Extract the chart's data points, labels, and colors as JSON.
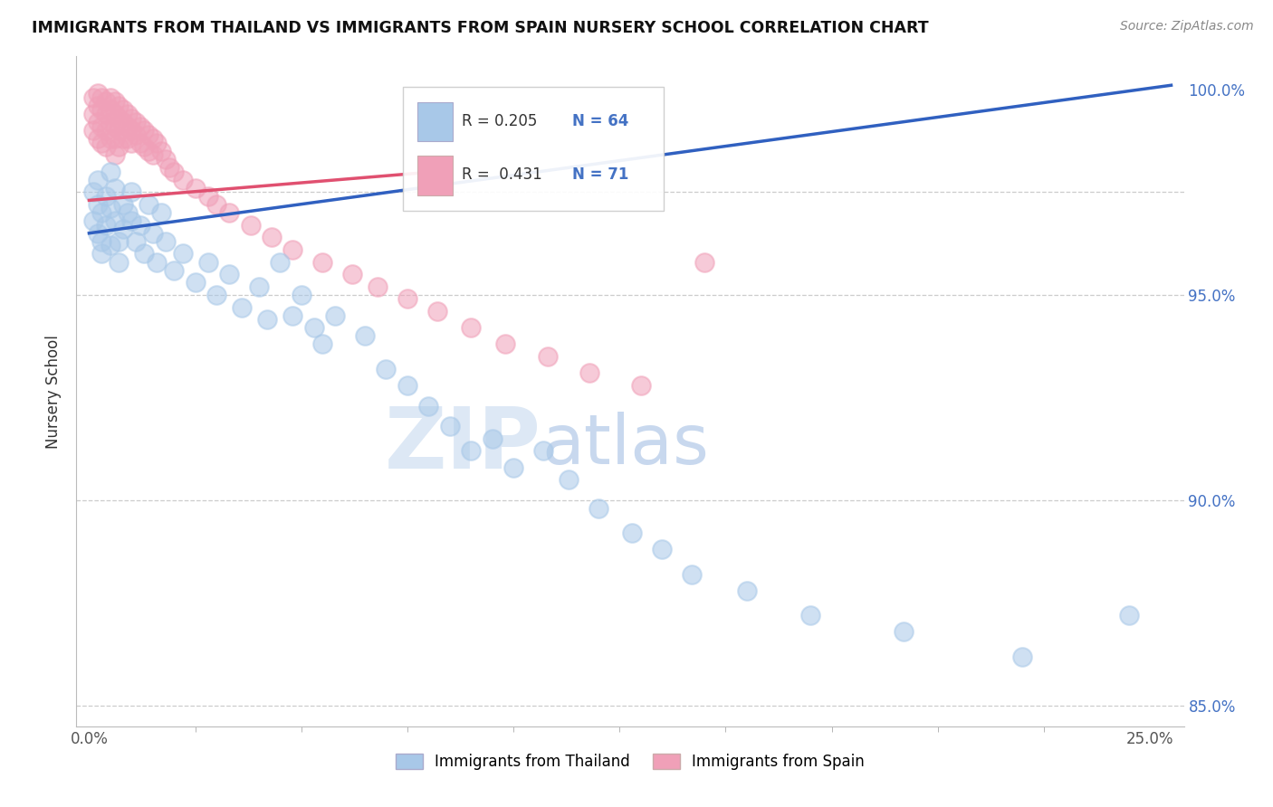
{
  "title": "IMMIGRANTS FROM THAILAND VS IMMIGRANTS FROM SPAIN NURSERY SCHOOL CORRELATION CHART",
  "source_text": "Source: ZipAtlas.com",
  "ylabel": "Nursery School",
  "xlim": [
    -0.003,
    0.258
  ],
  "ylim": [
    0.845,
    1.008
  ],
  "xtick_positions": [
    0.0,
    0.25
  ],
  "xticklabels": [
    "0.0%",
    "25.0%"
  ],
  "ytick_positions": [
    0.85,
    0.9,
    0.95,
    1.0
  ],
  "yticklabels": [
    "85.0%",
    "90.0%",
    "95.0%",
    "100.0%"
  ],
  "thailand_color": "#a8c8e8",
  "spain_color": "#f0a0b8",
  "thailand_line_color": "#3060c0",
  "spain_line_color": "#e05070",
  "thailand_R": "0.205",
  "thailand_N": "64",
  "spain_R": "0.431",
  "spain_N": "71",
  "legend_label_thailand": "Immigrants from Thailand",
  "legend_label_spain": "Immigrants from Spain",
  "gridline_color": "#cccccc",
  "gridline_y": [
    0.975,
    0.95,
    0.9,
    0.85
  ],
  "thai_line_x0": 0.0,
  "thai_line_y0": 0.965,
  "thai_line_x1": 0.255,
  "thai_line_y1": 1.001,
  "spain_line_x0": 0.0,
  "spain_line_y0": 0.973,
  "spain_line_x1": 0.082,
  "spain_line_y1": 0.98,
  "thailand_x": [
    0.001,
    0.001,
    0.002,
    0.002,
    0.002,
    0.003,
    0.003,
    0.003,
    0.004,
    0.004,
    0.005,
    0.005,
    0.005,
    0.006,
    0.006,
    0.007,
    0.007,
    0.008,
    0.008,
    0.009,
    0.01,
    0.01,
    0.011,
    0.012,
    0.013,
    0.014,
    0.015,
    0.016,
    0.017,
    0.018,
    0.02,
    0.022,
    0.025,
    0.028,
    0.03,
    0.033,
    0.036,
    0.04,
    0.042,
    0.045,
    0.048,
    0.05,
    0.053,
    0.055,
    0.058,
    0.065,
    0.07,
    0.075,
    0.08,
    0.085,
    0.09,
    0.095,
    0.1,
    0.107,
    0.113,
    0.12,
    0.128,
    0.135,
    0.142,
    0.155,
    0.17,
    0.192,
    0.22,
    0.245
  ],
  "thailand_y": [
    0.975,
    0.968,
    0.972,
    0.965,
    0.978,
    0.97,
    0.963,
    0.96,
    0.967,
    0.974,
    0.98,
    0.971,
    0.962,
    0.968,
    0.976,
    0.963,
    0.958,
    0.972,
    0.966,
    0.97,
    0.968,
    0.975,
    0.963,
    0.967,
    0.96,
    0.972,
    0.965,
    0.958,
    0.97,
    0.963,
    0.956,
    0.96,
    0.953,
    0.958,
    0.95,
    0.955,
    0.947,
    0.952,
    0.944,
    0.958,
    0.945,
    0.95,
    0.942,
    0.938,
    0.945,
    0.94,
    0.932,
    0.928,
    0.923,
    0.918,
    0.912,
    0.915,
    0.908,
    0.912,
    0.905,
    0.898,
    0.892,
    0.888,
    0.882,
    0.878,
    0.872,
    0.868,
    0.862,
    0.872
  ],
  "spain_x": [
    0.001,
    0.001,
    0.001,
    0.002,
    0.002,
    0.002,
    0.002,
    0.003,
    0.003,
    0.003,
    0.003,
    0.004,
    0.004,
    0.004,
    0.004,
    0.005,
    0.005,
    0.005,
    0.005,
    0.006,
    0.006,
    0.006,
    0.006,
    0.006,
    0.007,
    0.007,
    0.007,
    0.007,
    0.008,
    0.008,
    0.008,
    0.009,
    0.009,
    0.009,
    0.01,
    0.01,
    0.01,
    0.011,
    0.011,
    0.012,
    0.012,
    0.013,
    0.013,
    0.014,
    0.014,
    0.015,
    0.015,
    0.016,
    0.017,
    0.018,
    0.019,
    0.02,
    0.022,
    0.025,
    0.028,
    0.03,
    0.033,
    0.038,
    0.043,
    0.048,
    0.055,
    0.062,
    0.068,
    0.075,
    0.082,
    0.09,
    0.098,
    0.108,
    0.118,
    0.13,
    0.145
  ],
  "spain_y": [
    0.998,
    0.994,
    0.99,
    0.999,
    0.996,
    0.992,
    0.988,
    0.998,
    0.995,
    0.991,
    0.987,
    0.997,
    0.994,
    0.99,
    0.986,
    0.998,
    0.995,
    0.992,
    0.988,
    0.997,
    0.994,
    0.991,
    0.988,
    0.984,
    0.996,
    0.993,
    0.99,
    0.986,
    0.995,
    0.992,
    0.988,
    0.994,
    0.991,
    0.988,
    0.993,
    0.99,
    0.987,
    0.992,
    0.989,
    0.991,
    0.987,
    0.99,
    0.986,
    0.989,
    0.985,
    0.988,
    0.984,
    0.987,
    0.985,
    0.983,
    0.981,
    0.98,
    0.978,
    0.976,
    0.974,
    0.972,
    0.97,
    0.967,
    0.964,
    0.961,
    0.958,
    0.955,
    0.952,
    0.949,
    0.946,
    0.942,
    0.938,
    0.935,
    0.931,
    0.928,
    0.958
  ]
}
